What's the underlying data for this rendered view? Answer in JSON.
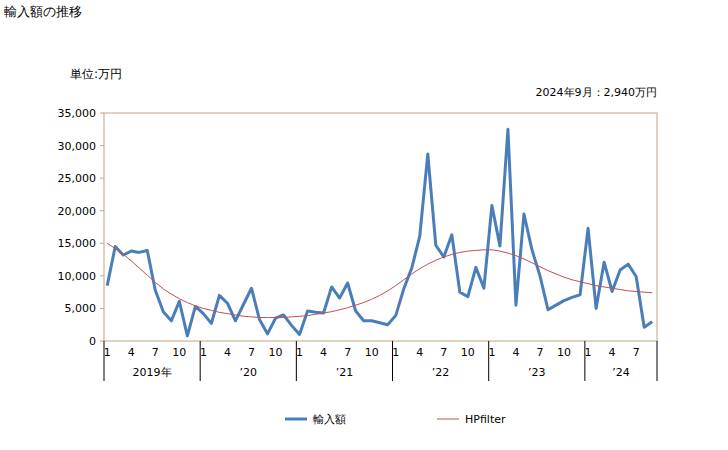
{
  "chart_data": {
    "type": "line",
    "title": "輸入額の推移",
    "subtitle": "単位:万円",
    "annotation": "2024年9月：2,940万円",
    "categories": [
      "1",
      null,
      null,
      "4",
      null,
      null,
      "7",
      null,
      null,
      "10",
      null,
      null,
      "1",
      null,
      null,
      "4",
      null,
      null,
      "7",
      null,
      null,
      "10",
      null,
      null,
      "1",
      null,
      null,
      "4",
      null,
      null,
      "7",
      null,
      null,
      "10",
      null,
      null,
      "1",
      null,
      null,
      "4",
      null,
      null,
      "7",
      null,
      null,
      "10",
      null,
      null,
      "1",
      null,
      null,
      "4",
      null,
      null,
      "7",
      null,
      null,
      "10",
      null,
      null,
      "1",
      null,
      null,
      "4",
      null,
      null,
      "7",
      null,
      null
    ],
    "year_labels": [
      "2019年",
      "’20",
      "’21",
      "’22",
      "’23",
      "’24"
    ],
    "series": [
      {
        "name": "輸入額",
        "color": "#4a7ebb",
        "values": [
          8500,
          14500,
          13200,
          13800,
          13600,
          13900,
          7800,
          4500,
          3100,
          6100,
          800,
          5300,
          4200,
          2700,
          7000,
          5800,
          3100,
          5600,
          8100,
          3300,
          1100,
          3500,
          4000,
          2400,
          1000,
          4600,
          4400,
          4300,
          8300,
          6600,
          8900,
          4600,
          3100,
          3100,
          2800,
          2500,
          3900,
          8000,
          11200,
          16100,
          28700,
          14700,
          12900,
          16300,
          7500,
          6800,
          11300,
          8100,
          20800,
          14600,
          32500,
          5500,
          19500,
          14000,
          10000,
          4800,
          5500,
          6200,
          6700,
          7100,
          17300,
          5000,
          12100,
          7600,
          10900,
          11800,
          9900,
          2100,
          2940
        ]
      },
      {
        "name": "HPfilter",
        "color": "#c0504d",
        "values": [
          15000,
          14200,
          13300,
          12300,
          11200,
          10100,
          9000,
          8000,
          7200,
          6500,
          5900,
          5400,
          5000,
          4700,
          4400,
          4200,
          4000,
          3800,
          3700,
          3600,
          3600,
          3600,
          3600,
          3700,
          3800,
          3900,
          4100,
          4300,
          4500,
          4800,
          5100,
          5500,
          5900,
          6400,
          7000,
          7700,
          8500,
          9400,
          10300,
          11100,
          11800,
          12400,
          12900,
          13300,
          13600,
          13800,
          13900,
          14000,
          14000,
          13800,
          13500,
          13100,
          12600,
          12000,
          11400,
          10800,
          10300,
          9800,
          9400,
          9100,
          8800,
          8500,
          8300,
          8100,
          7900,
          7700,
          7600,
          7500,
          7400
        ]
      }
    ],
    "ylim": [
      0,
      35000
    ],
    "yticks": [
      0,
      {
        "value": 5000,
        "label": "5,000"
      },
      {
        "value": 10000,
        "label": "10,000"
      },
      {
        "value": 15000,
        "label": "15,000"
      },
      {
        "value": 20000,
        "label": "20,000"
      },
      {
        "value": 25000,
        "label": "25,000"
      },
      {
        "value": 30000,
        "label": "30,000"
      },
      {
        "value": 35000,
        "label": "35,000"
      }
    ],
    "grid": false,
    "legend": "bottom"
  }
}
